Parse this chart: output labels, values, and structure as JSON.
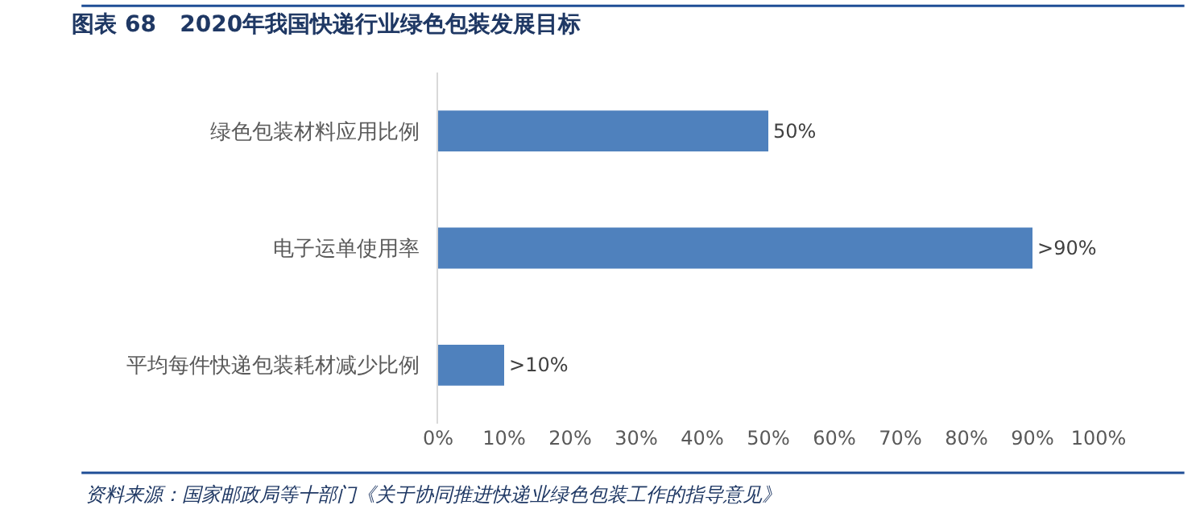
{
  "chart_data": {
    "type": "bar",
    "orientation": "horizontal",
    "title": "图表 68   2020年我国快递行业绿色包装发展目标",
    "categories": [
      "绿色包装材料应用比例",
      "电子运单使用率",
      "平均每件快递包装耗材减少比例"
    ],
    "values": [
      50,
      90,
      10
    ],
    "value_labels": [
      "50%",
      ">90%",
      ">10%"
    ],
    "color": "#4f81bd",
    "xlim": [
      0,
      100
    ],
    "xticks": [
      {
        "value": 0,
        "label": "0%"
      },
      {
        "value": 10,
        "label": "10%"
      },
      {
        "value": 20,
        "label": "20%"
      },
      {
        "value": 30,
        "label": "30%"
      },
      {
        "value": 40,
        "label": "40%"
      },
      {
        "value": 50,
        "label": "50%"
      },
      {
        "value": 60,
        "label": "60%"
      },
      {
        "value": 70,
        "label": "70%"
      },
      {
        "value": 80,
        "label": "80%"
      },
      {
        "value": 90,
        "label": "90%"
      },
      {
        "value": 100,
        "label": "100%"
      }
    ],
    "annotations": [
      "资料来源：国家邮政局等十部门《关于协同推进快递业绿色包装工作的指导意见》"
    ]
  }
}
